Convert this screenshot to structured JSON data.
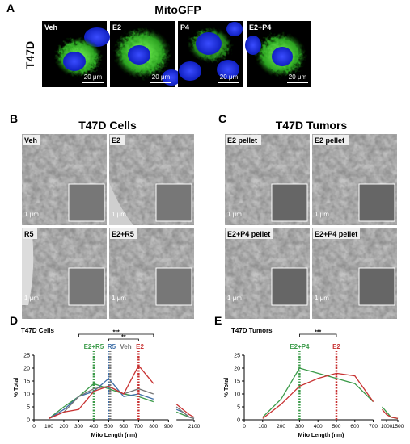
{
  "panels": {
    "A": {
      "label": "A",
      "title": "MitoGFP",
      "row_label": "T47D",
      "images": [
        {
          "label": "Veh",
          "scale": "20 μm"
        },
        {
          "label": "E2",
          "scale": "20 μm"
        },
        {
          "label": "P4",
          "scale": "20 μm"
        },
        {
          "label": "E2+P4",
          "scale": "20 μm"
        }
      ]
    },
    "B": {
      "label": "B",
      "title": "T47D Cells",
      "images": [
        {
          "label": "Veh",
          "scale": "1 μm"
        },
        {
          "label": "E2",
          "scale": "1 μm"
        },
        {
          "label": "R5",
          "scale": "1 μm"
        },
        {
          "label": "E2+R5",
          "scale": "1 μm"
        }
      ]
    },
    "C": {
      "label": "C",
      "title": "T47D Tumors",
      "images": [
        {
          "label": "E2 pellet",
          "scale": "1 μm"
        },
        {
          "label": "E2 pellet",
          "scale": "1 μm"
        },
        {
          "label": "E2+P4 pellet",
          "scale": "1 μm"
        },
        {
          "label": "E2+P4 pellet",
          "scale": "1 μm"
        }
      ]
    }
  },
  "chart_data": [
    {
      "type": "line",
      "panel_label": "D",
      "title": "T47D Cells",
      "x_label": "Mito Length (nm)",
      "y_label": "% Total",
      "x": [
        100,
        200,
        300,
        400,
        500,
        600,
        700,
        800,
        1000,
        1400,
        1800,
        2100
      ],
      "x_break": [
        900,
        1000
      ],
      "xlim": [
        0,
        2100
      ],
      "xticks": [
        0,
        100,
        200,
        300,
        400,
        500,
        600,
        700,
        800,
        900,
        2100
      ],
      "ylim": [
        0,
        25
      ],
      "yticks": [
        0,
        5,
        10,
        15,
        20,
        25
      ],
      "series": [
        {
          "name": "E2+R5",
          "color": "#3a9a48",
          "median": 400,
          "values": [
            0.5,
            5,
            9,
            14,
            12,
            10,
            9,
            7,
            3,
            2,
            1,
            0.5
          ]
        },
        {
          "name": "R5",
          "color": "#3f6fa8",
          "median": 500,
          "values": [
            0.5,
            4,
            9,
            11,
            16,
            9,
            10,
            8,
            4,
            3,
            1,
            0.5
          ]
        },
        {
          "name": "Veh",
          "color": "#777777",
          "median": 510,
          "values": [
            0.5,
            3,
            9,
            12,
            13,
            10,
            12,
            10,
            5,
            3,
            1,
            0.5
          ]
        },
        {
          "name": "E2",
          "color": "#c83232",
          "median": 700,
          "values": [
            0.5,
            3,
            4,
            11,
            13,
            10,
            21,
            14,
            6,
            4,
            2,
            1
          ]
        }
      ],
      "significance": [
        {
          "label": "***",
          "x": [
            300,
            800
          ]
        },
        {
          "label": "**",
          "x": [
            500,
            700
          ]
        }
      ]
    },
    {
      "type": "line",
      "panel_label": "E",
      "title": "T47D Tumors",
      "x_label": "Mito Length (nm)",
      "y_label": "% Total",
      "x": [
        100,
        200,
        300,
        400,
        500,
        600,
        700,
        800,
        1000,
        1200,
        1500
      ],
      "x_break": [
        700,
        750
      ],
      "xlim": [
        0,
        1500
      ],
      "xticks": [
        0,
        100,
        200,
        300,
        400,
        500,
        600,
        700,
        1000,
        1500
      ],
      "ylim": [
        0,
        25
      ],
      "yticks": [
        0,
        5,
        10,
        15,
        20,
        25
      ],
      "series": [
        {
          "name": "E2+P4",
          "color": "#3a9a48",
          "median": 300,
          "values": [
            1,
            8,
            20,
            18,
            16,
            14,
            7,
            5,
            3,
            1,
            0.5
          ]
        },
        {
          "name": "E2",
          "color": "#c83232",
          "median": 500,
          "values": [
            0.5,
            6,
            13,
            16,
            18,
            17,
            7,
            4,
            2,
            1,
            0.5
          ]
        }
      ],
      "significance": [
        {
          "label": "***",
          "x": [
            300,
            500
          ]
        }
      ]
    }
  ]
}
